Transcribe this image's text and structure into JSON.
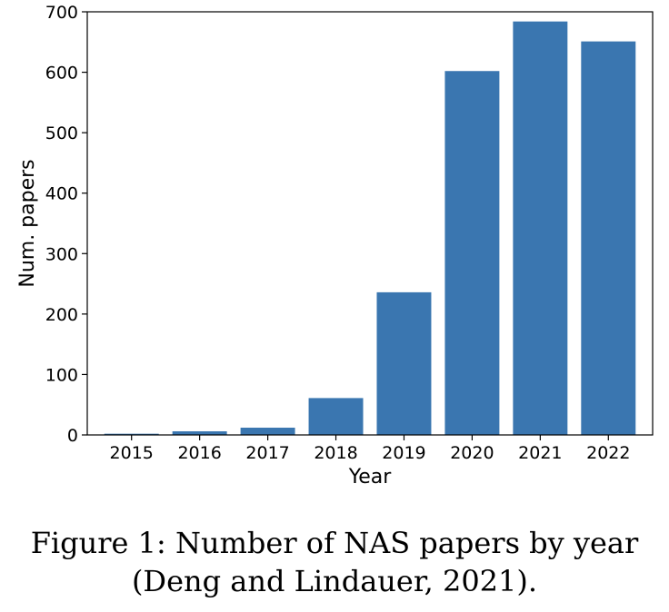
{
  "chart_data": {
    "type": "bar",
    "categories": [
      "2015",
      "2016",
      "2017",
      "2018",
      "2019",
      "2020",
      "2021",
      "2022"
    ],
    "values": [
      2,
      6,
      12,
      61,
      236,
      602,
      684,
      651
    ],
    "xlabel": "Year",
    "ylabel": "Num. papers",
    "ylim": [
      0,
      700
    ],
    "yticks": [
      0,
      100,
      200,
      300,
      400,
      500,
      600,
      700
    ],
    "bar_color": "#3a76b0",
    "grid": false,
    "legend": "none"
  },
  "caption": {
    "line1": "Figure 1: Number of NAS papers by year",
    "line2": "(Deng and Lindauer, 2021)."
  }
}
